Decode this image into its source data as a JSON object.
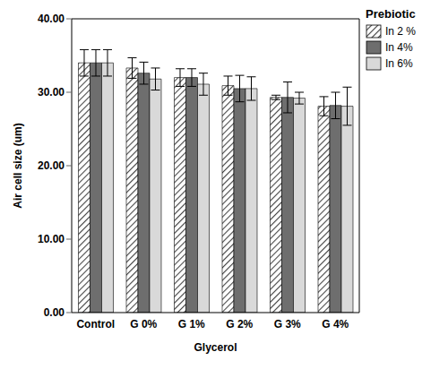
{
  "chart_data": {
    "type": "bar",
    "x_label": "Glycerol",
    "y_label": "Air cell size (um)",
    "legend_title": "Prebiotic",
    "legend": "right",
    "grid": false,
    "categories": [
      "Control",
      "G 0%",
      "G 1%",
      "G 2%",
      "G 3%",
      "G 4%"
    ],
    "series": [
      {
        "name": "In 2 %",
        "color": "#444444",
        "values": [
          34.0,
          33.3,
          32.0,
          30.9,
          29.3,
          28.1
        ],
        "errors": [
          1.8,
          1.4,
          1.2,
          1.3,
          0.3,
          1.3
        ]
      },
      {
        "name": "In 4%",
        "color": "#6e6e6e",
        "values": [
          34.0,
          32.6,
          32.0,
          30.5,
          29.3,
          28.2
        ],
        "errors": [
          1.8,
          1.5,
          1.2,
          1.8,
          2.1,
          1.8
        ]
      },
      {
        "name": "In 6%",
        "color": "#d9d9d9",
        "values": [
          34.0,
          31.8,
          31.1,
          30.5,
          29.2,
          28.1
        ],
        "errors": [
          1.8,
          1.5,
          1.5,
          1.6,
          0.8,
          2.6
        ]
      }
    ],
    "ylim": [
      0,
      40
    ],
    "yticks": [
      {
        "value": 0,
        "label": "0.00"
      },
      {
        "value": 10,
        "label": "10.00"
      },
      {
        "value": 20,
        "label": "20.00"
      },
      {
        "value": 30,
        "label": "30.00"
      },
      {
        "value": 40,
        "label": "40.00"
      }
    ]
  }
}
